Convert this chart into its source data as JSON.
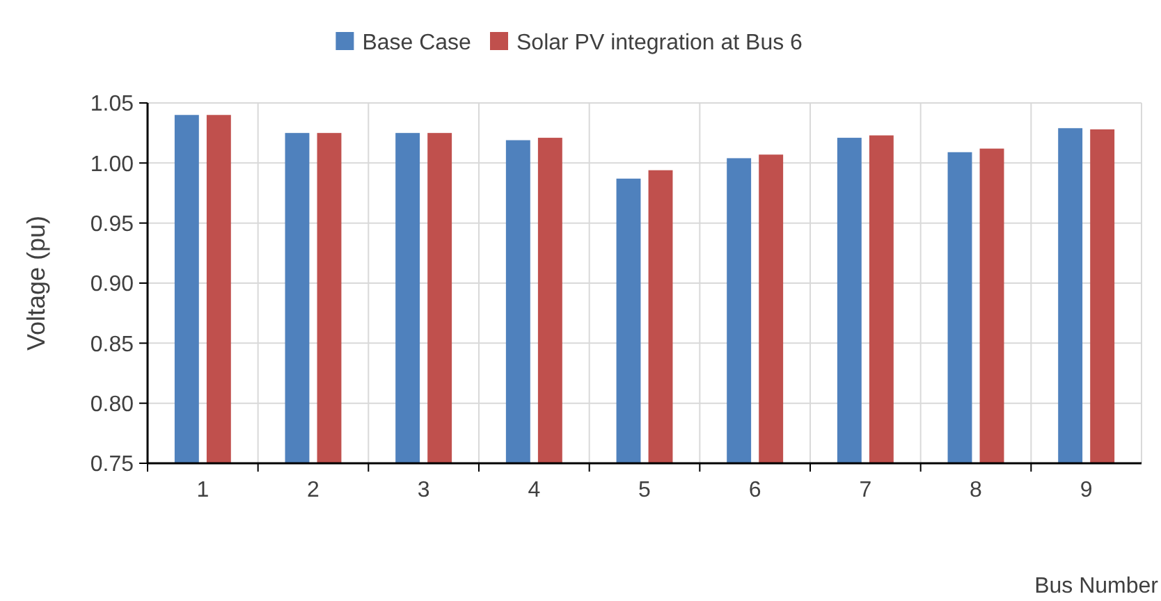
{
  "chart_data": {
    "type": "bar",
    "xlabel": "Bus Number",
    "ylabel": "Voltage (pu)",
    "categories": [
      "1",
      "2",
      "3",
      "4",
      "5",
      "6",
      "7",
      "8",
      "9"
    ],
    "series": [
      {
        "name": "Base Case",
        "color": "#4f81bd",
        "values": [
          1.04,
          1.025,
          1.025,
          1.019,
          0.987,
          1.004,
          1.021,
          1.009,
          1.029
        ]
      },
      {
        "name": "Solar PV integration at Bus 6",
        "color": "#c0504d",
        "values": [
          1.04,
          1.025,
          1.025,
          1.021,
          0.994,
          1.007,
          1.023,
          1.012,
          1.028
        ]
      }
    ],
    "ylim": [
      0.75,
      1.05
    ],
    "yticks": [
      {
        "value": 0.75,
        "label": "0.75"
      },
      {
        "value": 0.8,
        "label": "0.80"
      },
      {
        "value": 0.85,
        "label": "0.85"
      },
      {
        "value": 0.9,
        "label": "0.90"
      },
      {
        "value": 0.95,
        "label": "0.95"
      },
      {
        "value": 1.0,
        "label": "1.00"
      },
      {
        "value": 1.05,
        "label": "1.05"
      }
    ],
    "grid": true,
    "legend": "top"
  }
}
